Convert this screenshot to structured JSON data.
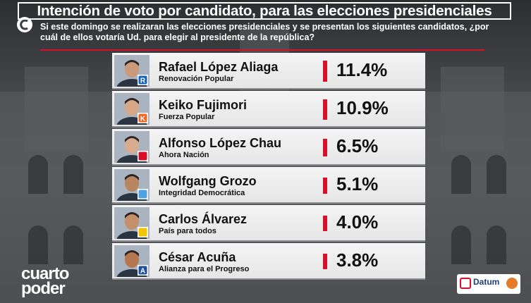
{
  "header": {
    "title": "Intención de voto por candidato, para las elecciones presidenciales",
    "question": "Si este domingo se realizaran las elecciones presidenciales y se presentan los siguientes candidatos, ¿por cuál de ellos votaría Ud. para elegir al presidente de la república?"
  },
  "branding": {
    "channel": "cuarto poder",
    "channel_line1": "cuarto",
    "channel_line2": "poder",
    "pollster": "Datum"
  },
  "colors": {
    "accent": "#d6102a",
    "row_bg": "#eeeeee"
  },
  "chart_data": {
    "type": "bar",
    "title": "Intención de voto por candidato, para las elecciones presidenciales",
    "categories": [
      "Rafael López Aliaga",
      "Keiko Fujimori",
      "Alfonso López Chau",
      "Wolfgang Grozo",
      "Carlos Álvarez",
      "César Acuña"
    ],
    "values": [
      11.4,
      10.9,
      6.5,
      5.1,
      4.0,
      3.8
    ],
    "unit": "%",
    "rows": [
      {
        "name": "Rafael López Aliaga",
        "party": "Renovación Popular",
        "value": 11.4,
        "label": "11.4%",
        "badge_icon": "renovacion-popular-logo",
        "badge_color": "#1565c0",
        "badge_letter": "R"
      },
      {
        "name": "Keiko Fujimori",
        "party": "Fuerza Popular",
        "value": 10.9,
        "label": "10.9%",
        "badge_icon": "fuerza-popular-logo",
        "badge_color": "#f26522",
        "badge_letter": "K"
      },
      {
        "name": "Alfonso López Chau",
        "party": "Ahora Nación",
        "value": 6.5,
        "label": "6.5%",
        "badge_icon": "ahora-nacion-logo",
        "badge_color": "#d6102a",
        "badge_letter": ""
      },
      {
        "name": "Wolfgang Grozo",
        "party": "Integridad Democrática",
        "value": 5.1,
        "label": "5.1%",
        "badge_icon": "integridad-democratica-logo",
        "badge_color": "#4fa3e0",
        "badge_letter": ""
      },
      {
        "name": "Carlos Álvarez",
        "party": "País para todos",
        "value": 4.0,
        "label": "4.0%",
        "badge_icon": "pais-para-todos-logo",
        "badge_color": "#f5c400",
        "badge_letter": ""
      },
      {
        "name": "César Acuña",
        "party": "Alianza para el Progreso",
        "value": 3.8,
        "label": "3.8%",
        "badge_icon": "alianza-progreso-logo",
        "badge_color": "#1e4fa0",
        "badge_letter": "A"
      }
    ]
  }
}
